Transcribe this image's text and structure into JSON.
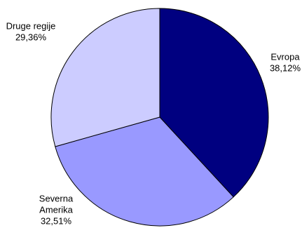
{
  "chart_data": {
    "type": "pie",
    "start_angle_deg": 0,
    "direction": "clockwise",
    "slices": [
      {
        "label_lines": [
          "Evropa"
        ],
        "value": 38.12,
        "value_label": "38,12%",
        "color": "#000080"
      },
      {
        "label_lines": [
          "Severna",
          "Amerika"
        ],
        "value": 32.51,
        "value_label": "32,51%",
        "color": "#9999FF"
      },
      {
        "label_lines": [
          "Druge regije"
        ],
        "value": 29.36,
        "value_label": "29,36%",
        "color": "#CCCCFF"
      }
    ]
  }
}
